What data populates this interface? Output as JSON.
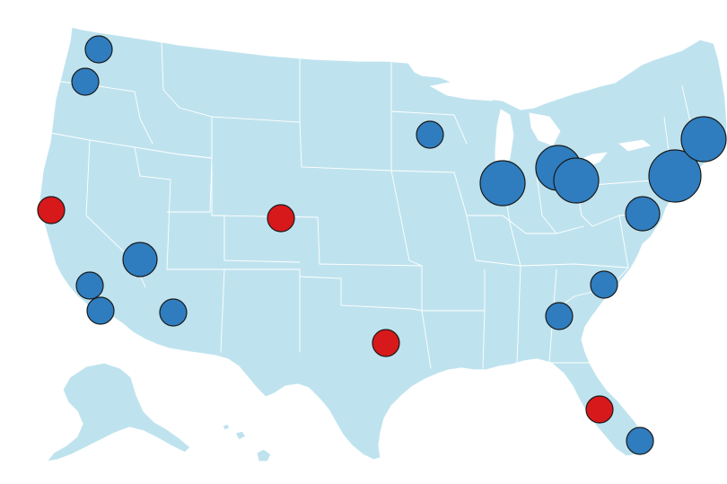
{
  "map": {
    "region": "United States",
    "colors": {
      "land": "#bfe3ee",
      "borders": "#ffffff",
      "background": "#ffffff",
      "blue_marker": "#2f7dbf",
      "red_marker": "#d7191c",
      "marker_outline": "#1a1a1a"
    },
    "markers": [
      {
        "id": "seattle-area-1",
        "color": "blue",
        "size": "small"
      },
      {
        "id": "seattle-area-2",
        "color": "blue",
        "size": "small"
      },
      {
        "id": "san-francisco",
        "color": "red",
        "size": "small"
      },
      {
        "id": "las-vegas",
        "color": "blue",
        "size": "medium"
      },
      {
        "id": "los-angeles",
        "color": "blue",
        "size": "small"
      },
      {
        "id": "san-diego",
        "color": "blue",
        "size": "small"
      },
      {
        "id": "phoenix",
        "color": "blue",
        "size": "small"
      },
      {
        "id": "denver",
        "color": "red",
        "size": "small"
      },
      {
        "id": "dallas",
        "color": "red",
        "size": "small"
      },
      {
        "id": "minneapolis",
        "color": "blue",
        "size": "small"
      },
      {
        "id": "chicago",
        "color": "blue",
        "size": "large"
      },
      {
        "id": "detroit",
        "color": "blue",
        "size": "large"
      },
      {
        "id": "cleveland",
        "color": "blue",
        "size": "large"
      },
      {
        "id": "new-york",
        "color": "blue",
        "size": "xlarge"
      },
      {
        "id": "boston",
        "color": "blue",
        "size": "large"
      },
      {
        "id": "washington-dc",
        "color": "blue",
        "size": "medium"
      },
      {
        "id": "charlotte",
        "color": "blue",
        "size": "small"
      },
      {
        "id": "atlanta",
        "color": "blue",
        "size": "small"
      },
      {
        "id": "orlando",
        "color": "red",
        "size": "small"
      },
      {
        "id": "miami",
        "color": "blue",
        "size": "small"
      }
    ]
  }
}
